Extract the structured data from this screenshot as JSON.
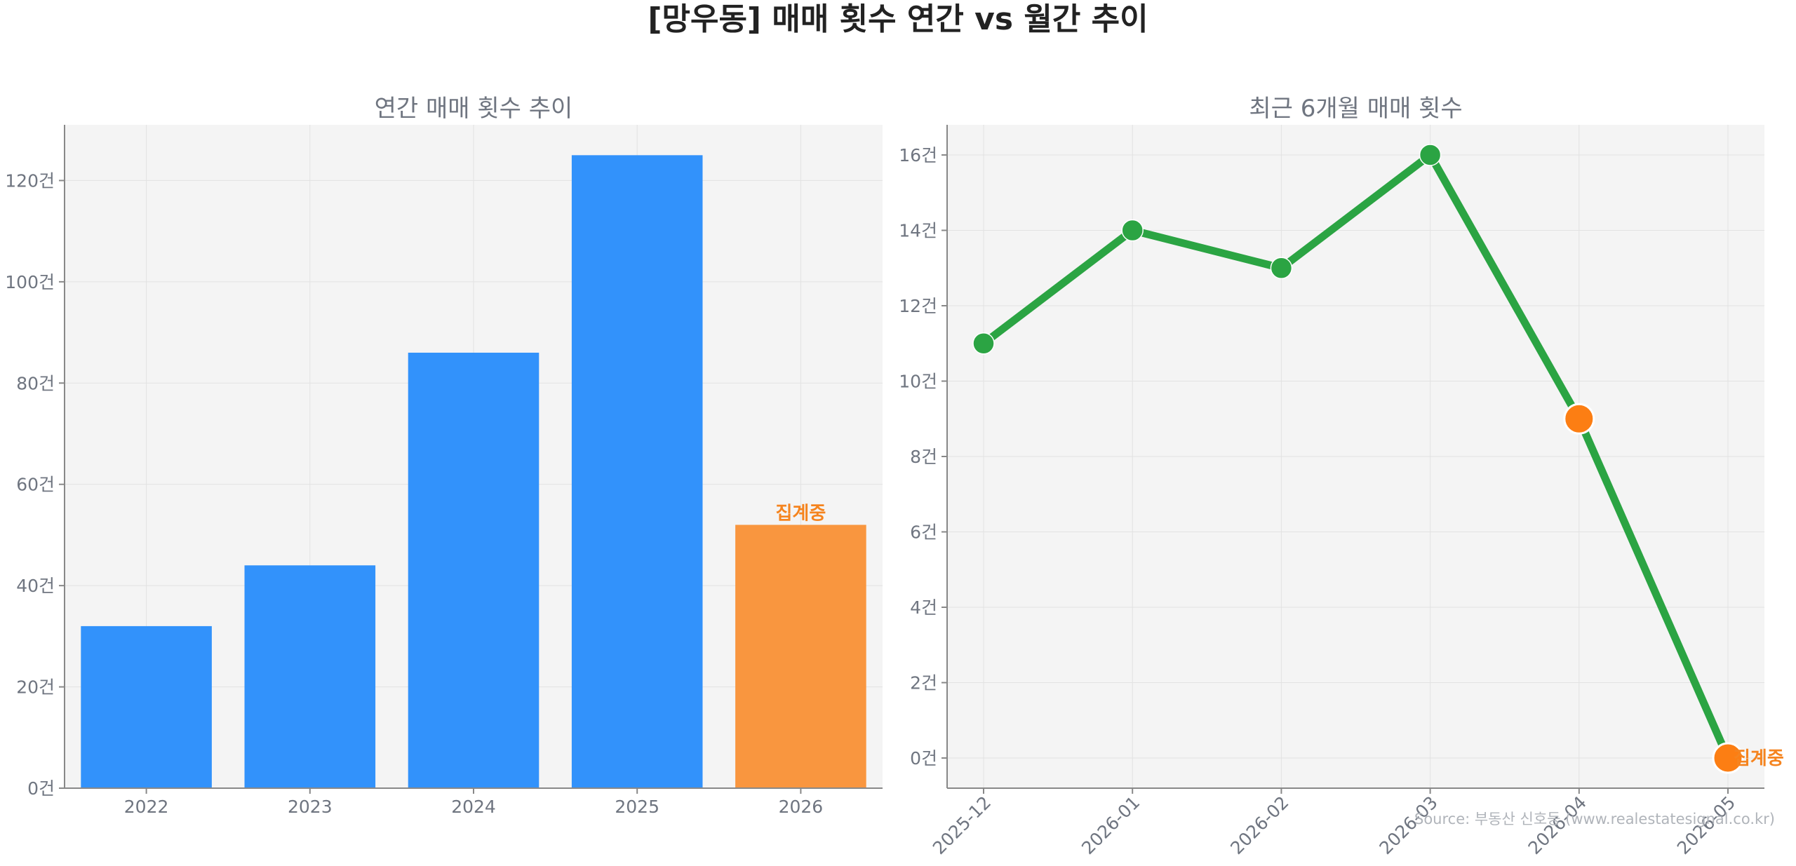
{
  "title": "[망우동] 매매 횟수 연간 vs 월간 추이",
  "source": "Source: 부동산 신호등 (www.realestatesignal.co.kr)",
  "pending_label": "집계중",
  "colors": {
    "bar": "#3292fb",
    "bar_pending": "#f9963f",
    "line": "#2ba443",
    "marker": "#2ba443",
    "marker_pending": "#fc7e13",
    "pending_text": "#f5841f",
    "plot_bg": "#f4f4f4",
    "grid": "#e2e2e2",
    "axis": "#888888",
    "tick_text": "#6f7580",
    "title_text": "#222222",
    "source_text": "#b0b4ba"
  },
  "chart_data": [
    {
      "type": "bar",
      "title": "연간 매매 횟수 추이",
      "categories": [
        "2022",
        "2023",
        "2024",
        "2025",
        "2026"
      ],
      "values": [
        32,
        44,
        86,
        125,
        52
      ],
      "pending": [
        false,
        false,
        false,
        false,
        true
      ],
      "ylim": [
        0,
        131
      ],
      "yticks": [
        0,
        20,
        40,
        60,
        80,
        100,
        120
      ],
      "ytick_suffix": "건",
      "grid": true
    },
    {
      "type": "line",
      "title": "최근 6개월 매매 횟수",
      "categories": [
        "2025-12",
        "2026-01",
        "2026-02",
        "2026-03",
        "2026-04",
        "2026-05"
      ],
      "values": [
        11,
        14,
        13,
        16,
        9,
        0
      ],
      "pending": [
        false,
        false,
        false,
        false,
        true,
        true
      ],
      "ylim": [
        -0.8,
        16.8
      ],
      "yticks": [
        0,
        2,
        4,
        6,
        8,
        10,
        12,
        14,
        16
      ],
      "ytick_suffix": "건",
      "grid": true,
      "xtick_rotation": "45deg"
    }
  ]
}
